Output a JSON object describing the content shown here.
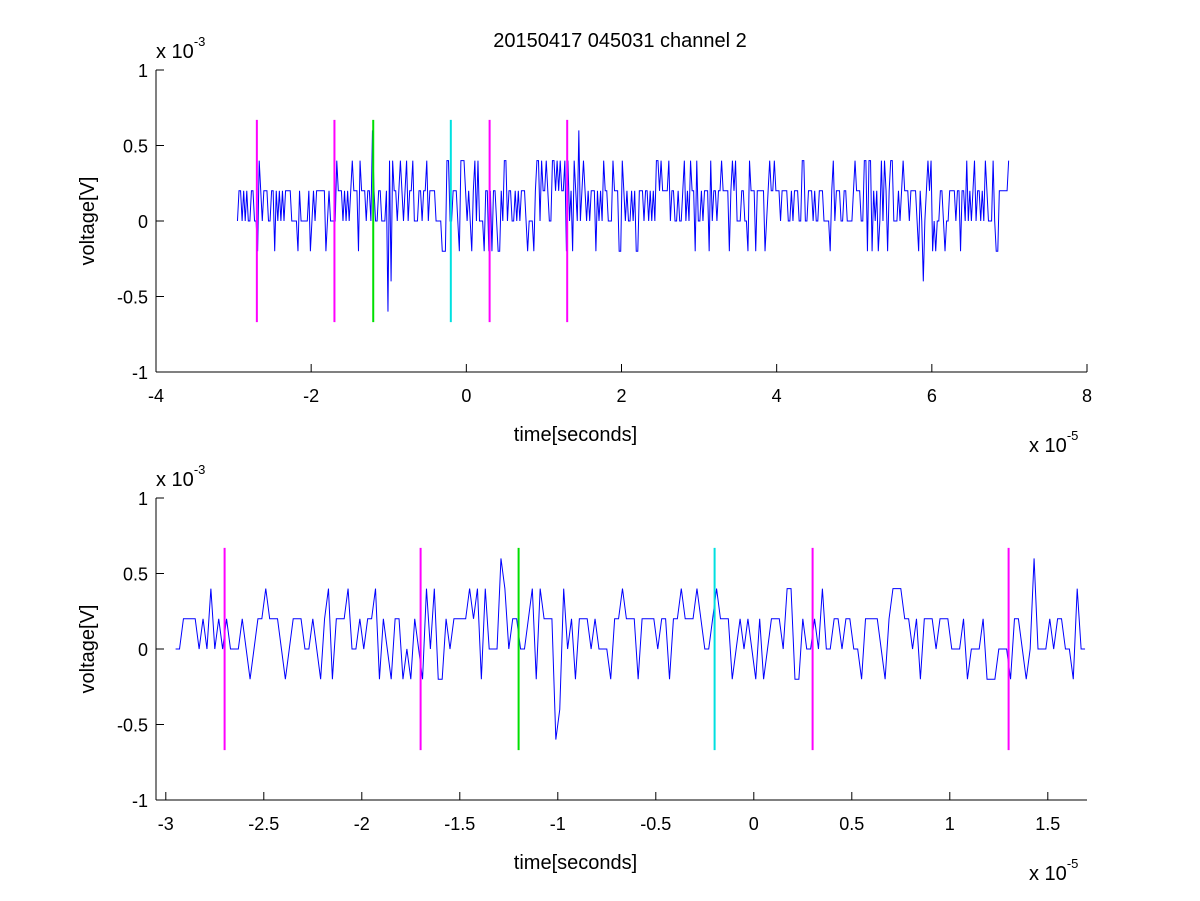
{
  "chart_data": [
    {
      "type": "line",
      "title": "20150417 045031 channel 2",
      "xlabel": "time[seconds]",
      "ylabel": "voltage[V]",
      "x_multiplier": {
        "base": "x 10",
        "exp": "-5"
      },
      "y_multiplier": {
        "base": "x 10",
        "exp": "-3"
      },
      "xlim": [
        -4,
        8
      ],
      "ylim": [
        -1,
        1
      ],
      "x_ticks": [
        -4,
        -2,
        0,
        2,
        4,
        6,
        8
      ],
      "y_ticks": [
        -1,
        -0.5,
        0,
        0.5,
        1
      ],
      "x_tick_labels": [
        "-4",
        "-2",
        "0",
        "2",
        "4",
        "6",
        "8"
      ],
      "y_tick_labels": [
        "-1",
        "-0.5",
        "0",
        "0.5",
        "1"
      ],
      "grid": false,
      "series": [
        {
          "color": "#0000ff",
          "x_range": [
            -2.95,
            7.0
          ],
          "step": 0.02,
          "seed": 17,
          "level_set": [
            -0.2,
            0,
            0.2,
            0.4
          ],
          "features": [
            {
              "x": -1.2,
              "y": 0.6
            },
            {
              "x": -1.0,
              "y": -0.6
            },
            {
              "x": -0.96,
              "y": -0.4
            },
            {
              "x": 1.45,
              "y": 0.6
            },
            {
              "x": 5.88,
              "y": -0.4
            }
          ]
        }
      ],
      "markers": [
        {
          "x": -2.7,
          "color": "#ff00ff",
          "y_range": [
            -0.67,
            0.67
          ]
        },
        {
          "x": -1.7,
          "color": "#ff00ff",
          "y_range": [
            -0.67,
            0.67
          ]
        },
        {
          "x": -1.2,
          "color": "#00e000",
          "y_range": [
            -0.67,
            0.67
          ]
        },
        {
          "x": -0.2,
          "color": "#00e0e0",
          "y_range": [
            -0.67,
            0.67
          ]
        },
        {
          "x": 0.3,
          "color": "#ff00ff",
          "y_range": [
            -0.67,
            0.67
          ]
        },
        {
          "x": 1.3,
          "color": "#ff00ff",
          "y_range": [
            -0.67,
            0.67
          ]
        }
      ]
    },
    {
      "type": "line",
      "title": "",
      "xlabel": "time[seconds]",
      "ylabel": "voltage[V]",
      "x_multiplier": {
        "base": "x 10",
        "exp": "-5"
      },
      "y_multiplier": {
        "base": "x 10",
        "exp": "-3"
      },
      "xlim": [
        -3.05,
        1.7
      ],
      "ylim": [
        -1,
        1
      ],
      "x_ticks": [
        -3,
        -2.5,
        -2,
        -1.5,
        -1,
        -0.5,
        0,
        0.5,
        1,
        1.5
      ],
      "y_ticks": [
        -1,
        -0.5,
        0,
        0.5,
        1
      ],
      "x_tick_labels": [
        "-3",
        "-2.5",
        "-2",
        "-1.5",
        "-1",
        "-0.5",
        "0",
        "0.5",
        "1",
        "1.5"
      ],
      "y_tick_labels": [
        "-1",
        "-0.5",
        "0",
        "0.5",
        "1"
      ],
      "grid": false,
      "series": [
        {
          "color": "#0000ff",
          "x_range": [
            -2.95,
            1.7
          ],
          "step": 0.02,
          "seed": 23,
          "level_set": [
            -0.2,
            0,
            0.2,
            0.4
          ],
          "features": [
            {
              "x": -1.28,
              "y": 0.6
            },
            {
              "x": -1.0,
              "y": -0.6
            },
            {
              "x": -0.98,
              "y": -0.4
            },
            {
              "x": 1.44,
              "y": 0.6
            }
          ]
        }
      ],
      "markers": [
        {
          "x": -2.7,
          "color": "#ff00ff",
          "y_range": [
            -0.67,
            0.67
          ]
        },
        {
          "x": -1.7,
          "color": "#ff00ff",
          "y_range": [
            -0.67,
            0.67
          ]
        },
        {
          "x": -1.2,
          "color": "#00e000",
          "y_range": [
            -0.67,
            0.67
          ]
        },
        {
          "x": -0.2,
          "color": "#00e0e0",
          "y_range": [
            -0.67,
            0.67
          ]
        },
        {
          "x": 0.3,
          "color": "#ff00ff",
          "y_range": [
            -0.67,
            0.67
          ]
        },
        {
          "x": 1.3,
          "color": "#ff00ff",
          "y_range": [
            -0.67,
            0.67
          ]
        }
      ]
    }
  ]
}
